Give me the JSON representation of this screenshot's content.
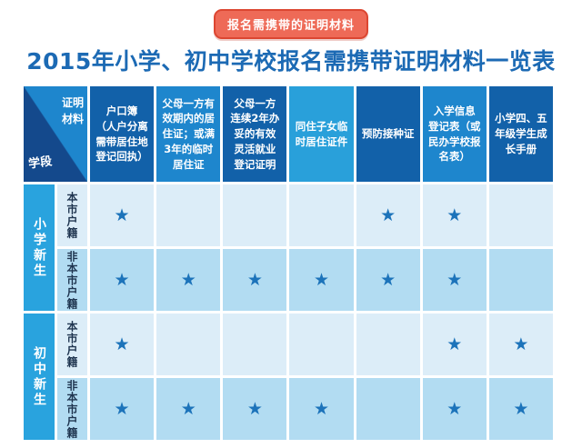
{
  "badge": {
    "label": "报名需携带的证明材料"
  },
  "title": "2015年小学、初中学校报名需携带证明材料一览表",
  "table": {
    "corner": {
      "top_right": "证明\n材料",
      "bottom_left": "学段"
    },
    "star_glyph": "★",
    "columns": [
      {
        "label": "户口簿\n（人户分离\n需带居住地\n登记回执）",
        "tone": "dark"
      },
      {
        "label": "父母一方有\n效期内的居\n住证；或满\n3年的临时\n居住证",
        "tone": "mid"
      },
      {
        "label": "父母一方\n连续2年办\n妥的有效\n灵活就业\n登记证明",
        "tone": "dark"
      },
      {
        "label": "同住子女临\n时居住证件",
        "tone": "light"
      },
      {
        "label": "预防接种证",
        "tone": "dark"
      },
      {
        "label": "入学信息\n登记表（或\n民办学校报\n名表）",
        "tone": "mid"
      },
      {
        "label": "小学四、五\n年级学生成\n长手册",
        "tone": "dark"
      }
    ],
    "row_groups": [
      {
        "label": "小学新生",
        "rows": [
          {
            "label": "本市户籍",
            "stars": [
              1,
              0,
              0,
              0,
              1,
              1,
              0
            ]
          },
          {
            "label": "非本市户籍",
            "stars": [
              1,
              1,
              1,
              1,
              1,
              1,
              0
            ]
          }
        ]
      },
      {
        "label": "初中新生",
        "rows": [
          {
            "label": "本市户籍",
            "stars": [
              1,
              0,
              0,
              0,
              0,
              1,
              1
            ]
          },
          {
            "label": "非本市户籍",
            "stars": [
              1,
              1,
              1,
              1,
              0,
              1,
              1
            ]
          }
        ]
      }
    ]
  },
  "colors": {
    "badge_fill": "#ee6a57",
    "badge_border": "#dc4631",
    "title_blue": "#1c6ab4",
    "header_dark": "#1261a9",
    "header_mid": "#1e86cd",
    "header_light": "#29a0da",
    "corner_triangle": "#14498c",
    "group_cyan": "#29a3de",
    "row_light": "#dcedf8",
    "row_dark": "#b2dcf2",
    "star_blue": "#1c73ba",
    "sub_label_text": "#1f3550"
  },
  "chart_data": {
    "type": "table",
    "title": "2015年小学、初中学校报名需携带证明材料一览表",
    "columns": [
      "户口簿（人户分离需带居住地登记回执）",
      "父母一方有效期内的居住证；或满3年的临时居住证",
      "父母一方连续2年办妥的有效灵活就业登记证明",
      "同住子女临时居住证件",
      "预防接种证",
      "入学信息登记表（或民办学校报名表）",
      "小学四、五年级学生成长手册"
    ],
    "rows": [
      {
        "group": "小学新生",
        "household": "本市户籍",
        "required": [
          true,
          false,
          false,
          false,
          true,
          true,
          false
        ]
      },
      {
        "group": "小学新生",
        "household": "非本市户籍",
        "required": [
          true,
          true,
          true,
          true,
          true,
          true,
          false
        ]
      },
      {
        "group": "初中新生",
        "household": "本市户籍",
        "required": [
          true,
          false,
          false,
          false,
          false,
          true,
          true
        ]
      },
      {
        "group": "初中新生",
        "household": "非本市户籍",
        "required": [
          true,
          true,
          true,
          true,
          false,
          true,
          true
        ]
      }
    ]
  }
}
